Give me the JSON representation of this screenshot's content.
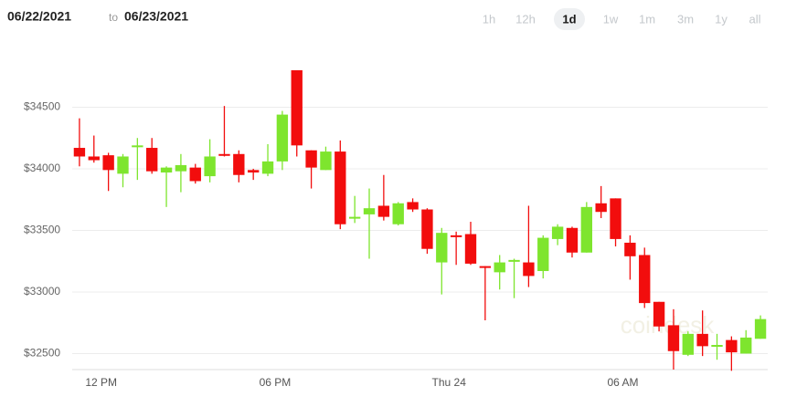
{
  "range": {
    "start": "06/22/2021",
    "to": "to",
    "end": "06/23/2021"
  },
  "timeframes": [
    "1h",
    "12h",
    "1d",
    "1w",
    "1m",
    "3m",
    "1y",
    "all"
  ],
  "selected_timeframe": "1d",
  "watermark": "coindesk",
  "chart_data": {
    "type": "candlestick",
    "categories": [
      null,
      "12 PM",
      null,
      null,
      null,
      null,
      null,
      null,
      null,
      null,
      null,
      null,
      null,
      "06 PM",
      null,
      null,
      null,
      null,
      null,
      null,
      null,
      null,
      null,
      null,
      null,
      "Thu 24",
      null,
      null,
      null,
      null,
      null,
      null,
      null,
      null,
      null,
      null,
      null,
      "06 AM",
      null,
      null,
      null,
      null,
      null,
      null,
      null,
      null,
      null,
      null
    ],
    "open": [
      34170,
      34100,
      34110,
      33960,
      34180,
      34170,
      33970,
      33980,
      34010,
      33940,
      34120,
      34120,
      33990,
      33960,
      34060,
      34800,
      34150,
      33990,
      34140,
      33600,
      33630,
      33700,
      33550,
      33730,
      33670,
      33240,
      33460,
      33470,
      33210,
      33160,
      33250,
      33240,
      33170,
      33430,
      33520,
      33320,
      33720,
      33760,
      33400,
      33300,
      32920,
      32730,
      32490,
      32660,
      32570,
      32610,
      32500,
      32620
    ],
    "high": [
      34410,
      34270,
      34130,
      34120,
      34250,
      34250,
      34020,
      34120,
      34040,
      34240,
      34510,
      34150,
      34000,
      34200,
      34470,
      34800,
      34150,
      34180,
      34230,
      33780,
      33840,
      33950,
      33730,
      33760,
      33680,
      33520,
      33490,
      33570,
      33210,
      33300,
      33270,
      33700,
      33460,
      33550,
      33530,
      33730,
      33860,
      33760,
      33460,
      33360,
      32920,
      32860,
      32680,
      32850,
      32660,
      32640,
      32690,
      32810
    ],
    "low": [
      34020,
      34050,
      33820,
      33850,
      33910,
      33960,
      33690,
      33810,
      33880,
      33890,
      34100,
      33890,
      33910,
      33940,
      33990,
      34100,
      33840,
      33990,
      33510,
      33560,
      33270,
      33580,
      33540,
      33650,
      33310,
      32980,
      33220,
      33220,
      32770,
      33020,
      32950,
      33040,
      33110,
      33380,
      33280,
      33320,
      33600,
      33370,
      33100,
      32870,
      32680,
      32370,
      32480,
      32480,
      32450,
      32360,
      32500,
      32620
    ],
    "close": [
      34100,
      34070,
      33990,
      34100,
      34190,
      33980,
      34010,
      34030,
      33900,
      34100,
      34110,
      33950,
      33970,
      34060,
      34440,
      34190,
      34010,
      34140,
      33550,
      33610,
      33680,
      33610,
      33720,
      33670,
      33350,
      33480,
      33450,
      33230,
      33200,
      33240,
      33260,
      33130,
      33440,
      33530,
      33320,
      33690,
      33650,
      33430,
      33290,
      32910,
      32720,
      32520,
      32660,
      32560,
      32570,
      32510,
      32630,
      32780
    ],
    "up_color": "#7ee52e",
    "down_color": "#f20d0d",
    "ylim": [
      32370,
      35000
    ],
    "yticks": [
      {
        "value": 32500,
        "label": "$32500"
      },
      {
        "value": 33000,
        "label": "$33000"
      },
      {
        "value": 33500,
        "label": "$33500"
      },
      {
        "value": 34000,
        "label": "$34000"
      },
      {
        "value": 34500,
        "label": "$34500"
      }
    ],
    "grid": true
  }
}
